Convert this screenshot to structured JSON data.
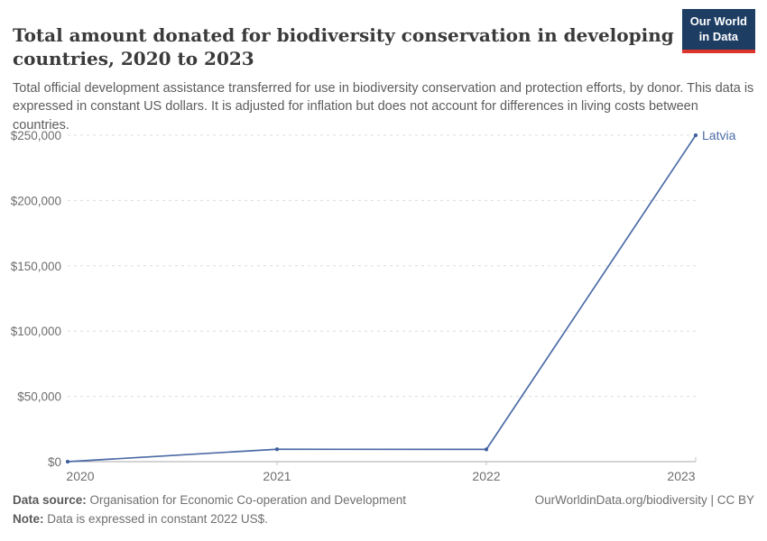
{
  "header": {
    "title": "Total amount donated for biodiversity conservation in developing countries, 2020 to 2023",
    "subtitle": "Total official development assistance transferred for use in biodiversity conservation and protection efforts, by donor. This data is expressed in constant US dollars. It is adjusted for inflation but does not account for differences in living costs between countries.",
    "logo": {
      "line1": "Our World",
      "line2": "in Data",
      "bg_color": "#1d3d63",
      "accent_color": "#dc352c"
    }
  },
  "chart_data": {
    "type": "line",
    "title": "Total amount donated for biodiversity conservation in developing countries, 2020 to 2023",
    "x": [
      2020,
      2021,
      2022,
      2023
    ],
    "xtick_labels": [
      "2020",
      "2021",
      "2022",
      "2023"
    ],
    "series": [
      {
        "name": "Latvia",
        "values": [
          0,
          9500,
          9400,
          250000
        ],
        "color": "#4c6ba6",
        "marker_color": "#3d5f9e"
      }
    ],
    "ylim": [
      0,
      250000
    ],
    "yticks": [
      0,
      50000,
      100000,
      150000,
      200000,
      250000
    ],
    "ytick_labels": [
      "$0",
      "$50,000",
      "$100,000",
      "$150,000",
      "$200,000",
      "$250,000"
    ],
    "ylabel": "",
    "xlabel": "",
    "grid": "horizontal-dashed",
    "legend_position": "end-of-line-label",
    "end_label": "Latvia"
  },
  "footer": {
    "source_label": "Data source:",
    "source_text": " Organisation for Economic Co-operation and Development",
    "note_label": "Note:",
    "note_text": " Data is expressed in constant 2022 US$.",
    "citation": "OurWorldinData.org/biodiversity | CC BY"
  }
}
